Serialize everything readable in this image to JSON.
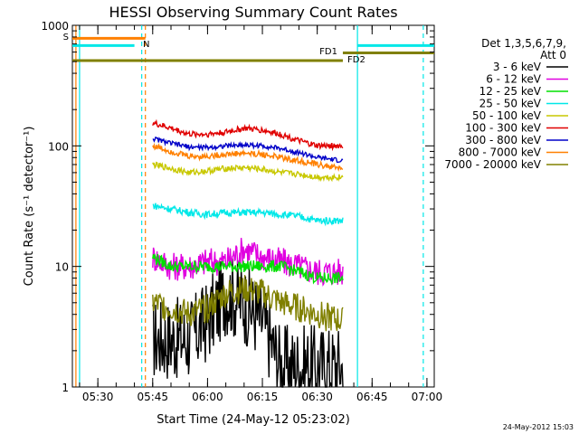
{
  "chart_data": {
    "type": "line",
    "title": "HESSI Observing Summary Count Rates",
    "xlabel": "Start Time (24-May-12 05:23:02)",
    "ylabel": "Count Rate (s⁻¹ detector⁻¹)",
    "yscale": "log",
    "ylim": [
      1,
      1000
    ],
    "xlim": [
      "05:23:02",
      "07:02:00"
    ],
    "x_ticks": [
      "05:30",
      "05:45",
      "06:00",
      "06:15",
      "06:30",
      "06:45",
      "07:00"
    ],
    "y_ticks": [
      "1",
      "10",
      "100",
      "1000"
    ],
    "grid": false,
    "legend_position": "right",
    "legend_header": [
      "Det 1,3,5,6,7,9,",
      "Att 0"
    ],
    "data_interval": [
      "05:45",
      "06:37"
    ],
    "x_points": [
      "05:45",
      "05:50",
      "05:55",
      "06:00",
      "06:05",
      "06:10",
      "06:15",
      "06:20",
      "06:25",
      "06:30",
      "06:37"
    ],
    "series": [
      {
        "name": "3 - 6 keV",
        "color": "#000000",
        "values": [
          2.5,
          2.5,
          2.5,
          3.5,
          6,
          5,
          3.5,
          1.5,
          1.5,
          1.5,
          1.5
        ]
      },
      {
        "name": "6 - 12 keV",
        "color": "#e000e0",
        "values": [
          12,
          10,
          10,
          11,
          11,
          14,
          12,
          11,
          10,
          9,
          9
        ]
      },
      {
        "name": "12 - 25 keV",
        "color": "#00e000",
        "values": [
          12,
          10,
          10,
          10,
          10,
          10,
          10,
          10,
          9,
          8,
          8
        ]
      },
      {
        "name": "25 - 50 keV",
        "color": "#00e8e8",
        "values": [
          32,
          30,
          28,
          27,
          28,
          28,
          28,
          27,
          26,
          24,
          24
        ]
      },
      {
        "name": "50 - 100 keV",
        "color": "#c8c800",
        "values": [
          70,
          65,
          60,
          62,
          65,
          66,
          64,
          60,
          58,
          55,
          55
        ]
      },
      {
        "name": "100 - 300 keV",
        "color": "#e00000",
        "values": [
          155,
          140,
          125,
          125,
          130,
          140,
          135,
          125,
          110,
          100,
          100
        ]
      },
      {
        "name": "300 - 800 keV",
        "color": "#0000c8",
        "values": [
          115,
          105,
          98,
          97,
          100,
          102,
          100,
          95,
          88,
          80,
          75
        ]
      },
      {
        "name": "800 - 7000 keV",
        "color": "#ff8000",
        "values": [
          100,
          90,
          82,
          82,
          85,
          87,
          85,
          80,
          75,
          70,
          65
        ]
      },
      {
        "name": "7000 - 20000 keV",
        "color": "#808000",
        "values": [
          5,
          4.5,
          4,
          4.5,
          6,
          6.5,
          6,
          5,
          4.5,
          4,
          3.5
        ]
      }
    ],
    "state_bars": [
      {
        "label": "S",
        "color": "#ff8000",
        "x_start": "05:23:02",
        "x_end": "05:43",
        "y": 780
      },
      {
        "label": "N",
        "color": "#00e8e8",
        "x_start": "05:23:02",
        "x_end": "05:40",
        "y": 680
      },
      {
        "label": "",
        "color": "#00e8e8",
        "x_start": "06:41",
        "x_end": "07:02",
        "y": 680
      },
      {
        "label": "FD1",
        "color": "#808000",
        "x_start": "06:37",
        "x_end": "07:02",
        "y": 590
      },
      {
        "label": "FD2",
        "color": "#808000",
        "x_start": "05:23:02",
        "x_end": "06:37",
        "y": 510
      }
    ],
    "vertical_markers": [
      {
        "x": "05:24",
        "color": "#ff8000",
        "style": "solid"
      },
      {
        "x": "05:25",
        "color": "#00e8e8",
        "style": "solid"
      },
      {
        "x": "05:42",
        "color": "#00e8e8",
        "style": "dashed"
      },
      {
        "x": "05:43",
        "color": "#ff8000",
        "style": "dashed"
      },
      {
        "x": "06:41",
        "color": "#00e8e8",
        "style": "solid"
      },
      {
        "x": "06:59",
        "color": "#00e8e8",
        "style": "dashed"
      }
    ]
  },
  "footer_timestamp": "24-May-2012 15:03"
}
